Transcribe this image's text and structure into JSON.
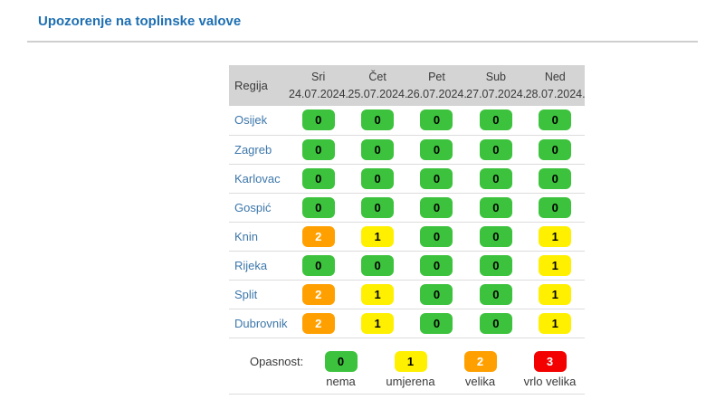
{
  "page": {
    "title": "Upozorenje na toplinske valove"
  },
  "chart_data": {
    "type": "table",
    "title": "Upozorenje na toplinske valove",
    "row_header": "Regija",
    "columns": [
      {
        "day": "Sri",
        "date": "24.07.2024."
      },
      {
        "day": "Čet",
        "date": "25.07.2024."
      },
      {
        "day": "Pet",
        "date": "26.07.2024."
      },
      {
        "day": "Sub",
        "date": "27.07.2024."
      },
      {
        "day": "Ned",
        "date": "28.07.2024."
      }
    ],
    "rows": [
      {
        "region": "Osijek",
        "values": [
          0,
          0,
          0,
          0,
          0
        ]
      },
      {
        "region": "Zagreb",
        "values": [
          0,
          0,
          0,
          0,
          0
        ]
      },
      {
        "region": "Karlovac",
        "values": [
          0,
          0,
          0,
          0,
          0
        ]
      },
      {
        "region": "Gospić",
        "values": [
          0,
          0,
          0,
          0,
          0
        ]
      },
      {
        "region": "Knin",
        "values": [
          2,
          1,
          0,
          0,
          1
        ]
      },
      {
        "region": "Rijeka",
        "values": [
          0,
          0,
          0,
          0,
          1
        ]
      },
      {
        "region": "Split",
        "values": [
          2,
          1,
          0,
          0,
          1
        ]
      },
      {
        "region": "Dubrovnik",
        "values": [
          2,
          1,
          0,
          0,
          1
        ]
      }
    ],
    "legend": {
      "label": "Opasnost:",
      "items": [
        {
          "value": 0,
          "label": "nema"
        },
        {
          "value": 1,
          "label": "umjerena"
        },
        {
          "value": 2,
          "label": "velika"
        },
        {
          "value": 3,
          "label": "vrlo velika"
        }
      ]
    },
    "levels": {
      "0": {
        "name": "nema",
        "bg": "#3cc23c",
        "fg": "#000000"
      },
      "1": {
        "name": "umjerena",
        "bg": "#fff000",
        "fg": "#000000"
      },
      "2": {
        "name": "velika",
        "bg": "#ffa000",
        "fg": "#ffffff"
      },
      "3": {
        "name": "vrlo velika",
        "bg": "#f30000",
        "fg": "#ffffff"
      }
    },
    "colors": {
      "title_text": "#1e6fb2",
      "region_text": "#3d77aa",
      "header_bg": "#d4d4d4",
      "divider": "#dcdcdc"
    }
  }
}
